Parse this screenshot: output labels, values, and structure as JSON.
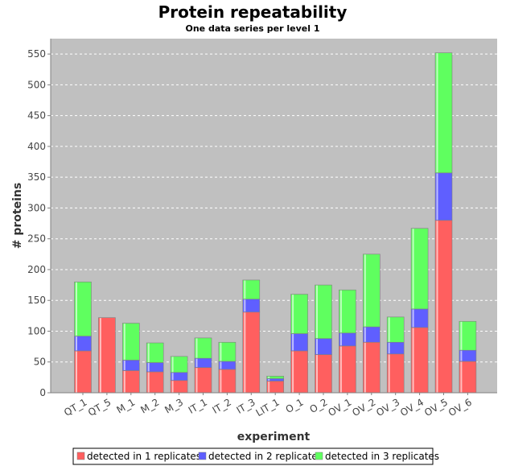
{
  "chart_data": {
    "type": "bar",
    "stacked": true,
    "title": "Protein repeatability",
    "subtitle": "One data series per level 1",
    "xlabel": "experiment",
    "ylabel": "# proteins",
    "ylim": [
      0,
      575
    ],
    "yticks": [
      0,
      50,
      100,
      150,
      200,
      250,
      300,
      350,
      400,
      450,
      500,
      550
    ],
    "grid": true,
    "legend_position": "bottom",
    "categories": [
      "QT_1",
      "QT_5",
      "M_1",
      "M_2",
      "M_3",
      "IT_1",
      "IT_2",
      "IT_3",
      "LIT_1",
      "O_1",
      "O_2",
      "OV_1",
      "OV_2",
      "OV_3",
      "OV_4",
      "OV_5",
      "OV_6"
    ],
    "series": [
      {
        "name": "detected in 1 replicates",
        "color": "#ff5f5f",
        "values": [
          68,
          122,
          36,
          34,
          20,
          41,
          38,
          131,
          19,
          68,
          62,
          76,
          82,
          63,
          106,
          280,
          51
        ]
      },
      {
        "name": "detected in 2 replicates",
        "color": "#5f5fff",
        "values": [
          24,
          0,
          17,
          15,
          13,
          15,
          13,
          21,
          4,
          28,
          26,
          21,
          25,
          19,
          30,
          77,
          18
        ]
      },
      {
        "name": "detected in 3 replicates",
        "color": "#5fff5f",
        "values": [
          88,
          0,
          60,
          32,
          26,
          33,
          31,
          31,
          4,
          64,
          87,
          70,
          118,
          41,
          131,
          195,
          47
        ]
      }
    ],
    "colors": {
      "plot_background": "#c0c0c0",
      "gridline": "#ffffff",
      "axis": "#808080"
    }
  }
}
